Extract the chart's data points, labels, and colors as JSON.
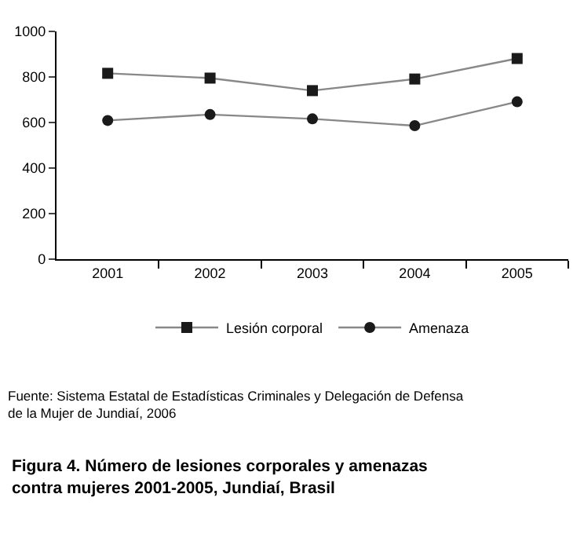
{
  "chart_data": {
    "type": "line",
    "title": "Figura 4. Número de lesiones corporales y amenazas contra mujeres 2001-2005, Jundiaí, Brasil",
    "annotations": [
      "Fuente: Sistema Estatal de Estadísticas Criminales y Delegación de Defensa de la Mujer de Jundiaí, 2006"
    ],
    "categories": [
      "2001",
      "2002",
      "2003",
      "2004",
      "2005"
    ],
    "series": [
      {
        "name": "Lesión corporal",
        "color": "#1a1a1a",
        "marker": "square",
        "values": [
          816,
          795,
          740,
          791,
          881
        ]
      },
      {
        "name": "Amenaza",
        "color": "#1a1a1a",
        "marker": "circle",
        "values": [
          609,
          635,
          616,
          586,
          691
        ]
      }
    ],
    "ylim": [
      0,
      1000
    ],
    "yticks": [
      0,
      200,
      400,
      600,
      800,
      1000
    ],
    "legend": "bottom",
    "line_style": "solid"
  }
}
